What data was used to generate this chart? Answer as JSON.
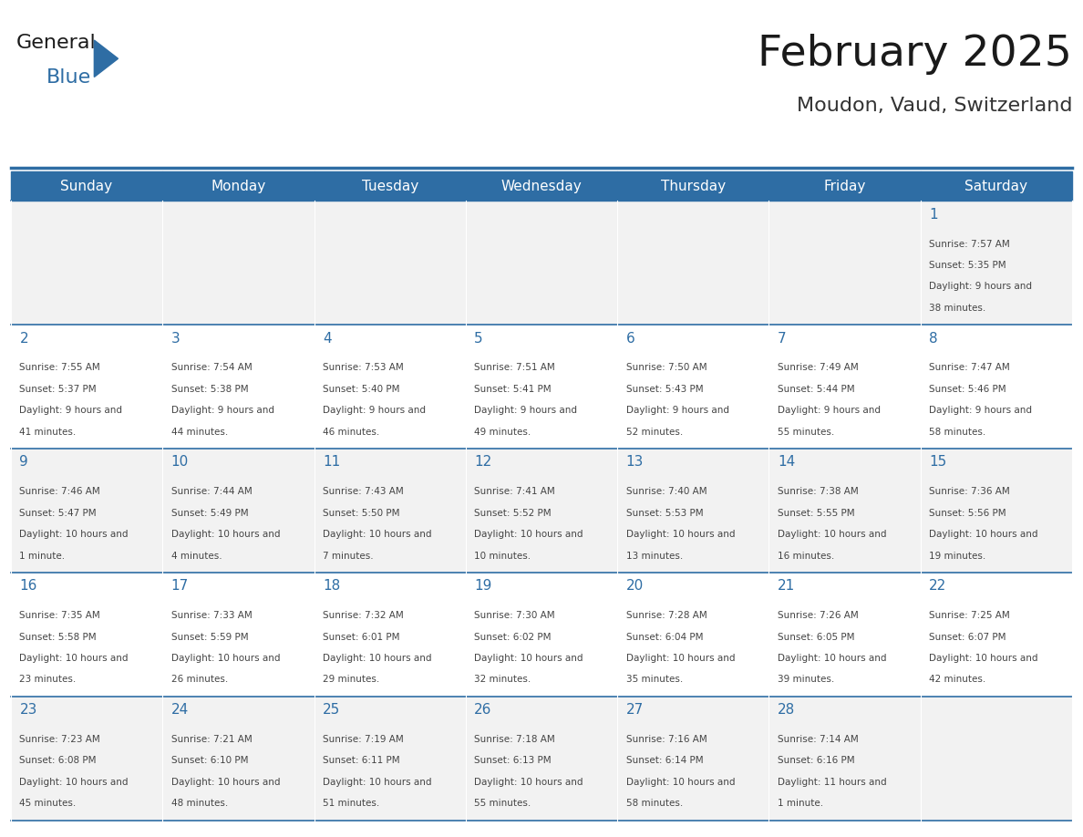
{
  "title": "February 2025",
  "subtitle": "Moudon, Vaud, Switzerland",
  "header_bg": "#2E6DA4",
  "header_text_color": "#FFFFFF",
  "cell_bg_light": "#F2F2F2",
  "cell_bg_white": "#FFFFFF",
  "border_color": "#2E6DA4",
  "day_headers": [
    "Sunday",
    "Monday",
    "Tuesday",
    "Wednesday",
    "Thursday",
    "Friday",
    "Saturday"
  ],
  "title_color": "#1A1A1A",
  "subtitle_color": "#333333",
  "day_num_color": "#2E6DA4",
  "info_color": "#444444",
  "days": [
    {
      "day": 1,
      "col": 6,
      "row": 0,
      "sunrise": "7:57 AM",
      "sunset": "5:35 PM",
      "daylight": "9 hours and 38 minutes."
    },
    {
      "day": 2,
      "col": 0,
      "row": 1,
      "sunrise": "7:55 AM",
      "sunset": "5:37 PM",
      "daylight": "9 hours and 41 minutes."
    },
    {
      "day": 3,
      "col": 1,
      "row": 1,
      "sunrise": "7:54 AM",
      "sunset": "5:38 PM",
      "daylight": "9 hours and 44 minutes."
    },
    {
      "day": 4,
      "col": 2,
      "row": 1,
      "sunrise": "7:53 AM",
      "sunset": "5:40 PM",
      "daylight": "9 hours and 46 minutes."
    },
    {
      "day": 5,
      "col": 3,
      "row": 1,
      "sunrise": "7:51 AM",
      "sunset": "5:41 PM",
      "daylight": "9 hours and 49 minutes."
    },
    {
      "day": 6,
      "col": 4,
      "row": 1,
      "sunrise": "7:50 AM",
      "sunset": "5:43 PM",
      "daylight": "9 hours and 52 minutes."
    },
    {
      "day": 7,
      "col": 5,
      "row": 1,
      "sunrise": "7:49 AM",
      "sunset": "5:44 PM",
      "daylight": "9 hours and 55 minutes."
    },
    {
      "day": 8,
      "col": 6,
      "row": 1,
      "sunrise": "7:47 AM",
      "sunset": "5:46 PM",
      "daylight": "9 hours and 58 minutes."
    },
    {
      "day": 9,
      "col": 0,
      "row": 2,
      "sunrise": "7:46 AM",
      "sunset": "5:47 PM",
      "daylight": "10 hours and 1 minute."
    },
    {
      "day": 10,
      "col": 1,
      "row": 2,
      "sunrise": "7:44 AM",
      "sunset": "5:49 PM",
      "daylight": "10 hours and 4 minutes."
    },
    {
      "day": 11,
      "col": 2,
      "row": 2,
      "sunrise": "7:43 AM",
      "sunset": "5:50 PM",
      "daylight": "10 hours and 7 minutes."
    },
    {
      "day": 12,
      "col": 3,
      "row": 2,
      "sunrise": "7:41 AM",
      "sunset": "5:52 PM",
      "daylight": "10 hours and 10 minutes."
    },
    {
      "day": 13,
      "col": 4,
      "row": 2,
      "sunrise": "7:40 AM",
      "sunset": "5:53 PM",
      "daylight": "10 hours and 13 minutes."
    },
    {
      "day": 14,
      "col": 5,
      "row": 2,
      "sunrise": "7:38 AM",
      "sunset": "5:55 PM",
      "daylight": "10 hours and 16 minutes."
    },
    {
      "day": 15,
      "col": 6,
      "row": 2,
      "sunrise": "7:36 AM",
      "sunset": "5:56 PM",
      "daylight": "10 hours and 19 minutes."
    },
    {
      "day": 16,
      "col": 0,
      "row": 3,
      "sunrise": "7:35 AM",
      "sunset": "5:58 PM",
      "daylight": "10 hours and 23 minutes."
    },
    {
      "day": 17,
      "col": 1,
      "row": 3,
      "sunrise": "7:33 AM",
      "sunset": "5:59 PM",
      "daylight": "10 hours and 26 minutes."
    },
    {
      "day": 18,
      "col": 2,
      "row": 3,
      "sunrise": "7:32 AM",
      "sunset": "6:01 PM",
      "daylight": "10 hours and 29 minutes."
    },
    {
      "day": 19,
      "col": 3,
      "row": 3,
      "sunrise": "7:30 AM",
      "sunset": "6:02 PM",
      "daylight": "10 hours and 32 minutes."
    },
    {
      "day": 20,
      "col": 4,
      "row": 3,
      "sunrise": "7:28 AM",
      "sunset": "6:04 PM",
      "daylight": "10 hours and 35 minutes."
    },
    {
      "day": 21,
      "col": 5,
      "row": 3,
      "sunrise": "7:26 AM",
      "sunset": "6:05 PM",
      "daylight": "10 hours and 39 minutes."
    },
    {
      "day": 22,
      "col": 6,
      "row": 3,
      "sunrise": "7:25 AM",
      "sunset": "6:07 PM",
      "daylight": "10 hours and 42 minutes."
    },
    {
      "day": 23,
      "col": 0,
      "row": 4,
      "sunrise": "7:23 AM",
      "sunset": "6:08 PM",
      "daylight": "10 hours and 45 minutes."
    },
    {
      "day": 24,
      "col": 1,
      "row": 4,
      "sunrise": "7:21 AM",
      "sunset": "6:10 PM",
      "daylight": "10 hours and 48 minutes."
    },
    {
      "day": 25,
      "col": 2,
      "row": 4,
      "sunrise": "7:19 AM",
      "sunset": "6:11 PM",
      "daylight": "10 hours and 51 minutes."
    },
    {
      "day": 26,
      "col": 3,
      "row": 4,
      "sunrise": "7:18 AM",
      "sunset": "6:13 PM",
      "daylight": "10 hours and 55 minutes."
    },
    {
      "day": 27,
      "col": 4,
      "row": 4,
      "sunrise": "7:16 AM",
      "sunset": "6:14 PM",
      "daylight": "10 hours and 58 minutes."
    },
    {
      "day": 28,
      "col": 5,
      "row": 4,
      "sunrise": "7:14 AM",
      "sunset": "6:16 PM",
      "daylight": "11 hours and 1 minute."
    }
  ],
  "logo_text1": "General",
  "logo_text2": "Blue",
  "logo_color1": "#1A1A1A",
  "logo_color2": "#2E6DA4",
  "logo_triangle_color": "#2E6DA4"
}
